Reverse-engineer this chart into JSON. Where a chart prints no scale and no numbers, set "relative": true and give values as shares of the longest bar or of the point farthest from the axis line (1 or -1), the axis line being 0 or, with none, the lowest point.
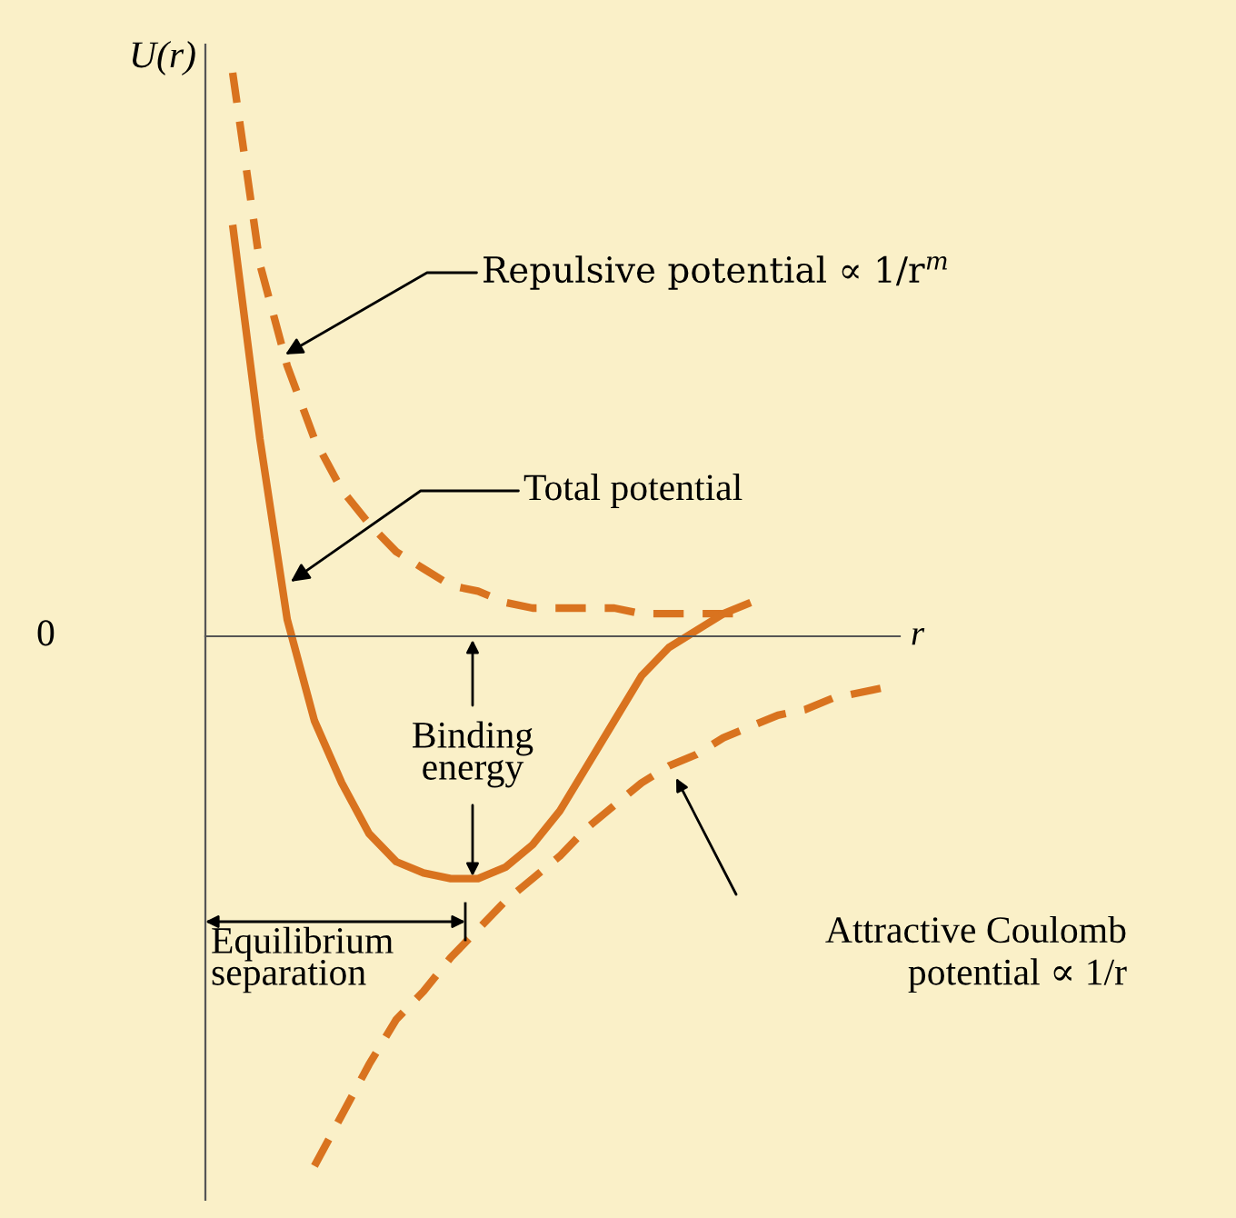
{
  "chart_data": {
    "type": "line",
    "relative": true,
    "xlabel": "r",
    "ylabel": "U(r)",
    "legend": false,
    "marker": "none",
    "categories": [
      null,
      null,
      null,
      null,
      null,
      null,
      null,
      null,
      null,
      null,
      null,
      null,
      null,
      null,
      null,
      null,
      null,
      null,
      null,
      null,
      null,
      null,
      null,
      null,
      null
    ],
    "series": [
      {
        "color": "#d9731f",
        "line_style": "dashed",
        "values": [
          1.0,
          0.66,
          0.48,
          0.35,
          0.26,
          0.2,
          0.15,
          0.12,
          0.09,
          0.08,
          0.06,
          0.05,
          0.05,
          0.05,
          0.05,
          0.04,
          0.04,
          0.04,
          0.04,
          0.04,
          null,
          null,
          null,
          null,
          null
        ]
      },
      {
        "color": "#d9731f",
        "line_style": "solid",
        "values": [
          0.73,
          0.35,
          0.03,
          -0.15,
          -0.26,
          -0.35,
          -0.4,
          -0.42,
          -0.43,
          -0.43,
          -0.41,
          -0.37,
          -0.31,
          -0.23,
          -0.15,
          -0.07,
          -0.02,
          0.01,
          0.04,
          0.06,
          null,
          null,
          null,
          null,
          null
        ]
      },
      {
        "color": "#d9731f",
        "line_style": "dashed",
        "values": [
          null,
          null,
          null,
          -0.94,
          -0.85,
          -0.76,
          -0.68,
          -0.63,
          -0.57,
          -0.52,
          -0.47,
          -0.43,
          -0.39,
          -0.34,
          -0.3,
          -0.26,
          -0.23,
          -0.21,
          -0.18,
          -0.16,
          -0.14,
          -0.13,
          -0.11,
          -0.1,
          -0.09
        ]
      }
    ],
    "annotations": [
      "0",
      "Repulsive potential ∝ 1/r$^{m}$",
      "Total potential",
      "Binding\nenergy",
      "Attractive Coulomb\npotential ∝ 1/r",
      "Equilibrium\nseparation"
    ]
  }
}
